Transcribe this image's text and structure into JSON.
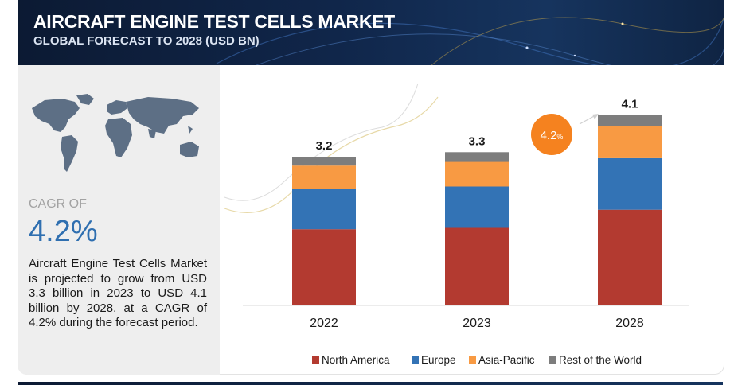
{
  "header": {
    "title": "AIRCRAFT ENGINE TEST CELLS MARKET",
    "subtitle": "GLOBAL FORECAST TO 2028 (USD BN)"
  },
  "summary": {
    "cagr_label": "CAGR OF",
    "cagr_value": "4.2%",
    "description": "Aircraft Engine Test Cells Market is projected to grow from USD 3.3 billion in 2023 to USD 4.1 billion by 2028, at a CAGR of 4.2% during the forecast period."
  },
  "colors": {
    "North America": "#b33a30",
    "Europe": "#3373b5",
    "Asia-Pacific": "#f89a43",
    "Rest of the World": "#7d7d7d",
    "badge": "#f5821f",
    "accent": "#2f6fb0"
  },
  "chart_data": {
    "type": "bar",
    "stacked": true,
    "categories": [
      "2022",
      "2023",
      "2028"
    ],
    "series": [
      {
        "name": "North America",
        "values": [
          1.64,
          1.67,
          2.06
        ]
      },
      {
        "name": "Europe",
        "values": [
          0.86,
          0.89,
          1.11
        ]
      },
      {
        "name": "Asia-Pacific",
        "values": [
          0.51,
          0.53,
          0.7
        ]
      },
      {
        "name": "Rest of the World",
        "values": [
          0.19,
          0.21,
          0.23
        ]
      }
    ],
    "totals": [
      "3.2",
      "3.3",
      "4.1"
    ],
    "cagr_badge": {
      "value": "4.2",
      "unit": "%"
    },
    "legend": "bottom",
    "grid": false
  }
}
